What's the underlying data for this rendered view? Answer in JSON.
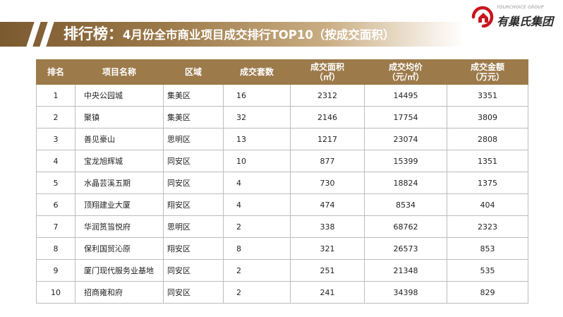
{
  "header": {
    "title_main": "排行榜：",
    "title_sub": "4月份全市商业项目成交排行TOP10（按成交面积）"
  },
  "logo": {
    "en": "YOURCHOICE GROUP",
    "cn": "有巢氏集团"
  },
  "table": {
    "headers": {
      "rank": "排名",
      "name": "项目名称",
      "district": "区域",
      "units": "成交套数",
      "area_line1": "成交面积",
      "area_line2": "（㎡）",
      "price_line1": "成交均价",
      "price_line2": "（元/㎡）",
      "amount_line1": "成交金额",
      "amount_line2": "（万元）"
    },
    "rows": [
      {
        "rank": "1",
        "name": "中央公园城",
        "district": "集美区",
        "units": "16",
        "area": "2312",
        "price": "14495",
        "amount": "3351"
      },
      {
        "rank": "2",
        "name": "聚镇",
        "district": "集美区",
        "units": "32",
        "area": "2146",
        "price": "17754",
        "amount": "3809"
      },
      {
        "rank": "3",
        "name": "善见豪山",
        "district": "思明区",
        "units": "13",
        "area": "1217",
        "price": "23074",
        "amount": "2808"
      },
      {
        "rank": "4",
        "name": "宝龙旭辉城",
        "district": "同安区",
        "units": "10",
        "area": "877",
        "price": "15399",
        "amount": "1351"
      },
      {
        "rank": "5",
        "name": "水晶芸溪五期",
        "district": "同安区",
        "units": "4",
        "area": "730",
        "price": "18824",
        "amount": "1375"
      },
      {
        "rank": "6",
        "name": "顶翔建业大厦",
        "district": "翔安区",
        "units": "4",
        "area": "474",
        "price": "8534",
        "amount": "404"
      },
      {
        "rank": "7",
        "name": "华润筼筜悦府",
        "district": "思明区",
        "units": "2",
        "area": "338",
        "price": "68762",
        "amount": "2323"
      },
      {
        "rank": "8",
        "name": "保利国贸沁原",
        "district": "翔安区",
        "units": "8",
        "area": "321",
        "price": "26573",
        "amount": "853"
      },
      {
        "rank": "9",
        "name": "厦门现代服务业基地",
        "district": "同安区",
        "units": "2",
        "area": "251",
        "price": "21348",
        "amount": "535"
      },
      {
        "rank": "10",
        "name": "招商雍和府",
        "district": "同安区",
        "units": "2",
        "area": "241",
        "price": "34398",
        "amount": "829"
      }
    ]
  }
}
